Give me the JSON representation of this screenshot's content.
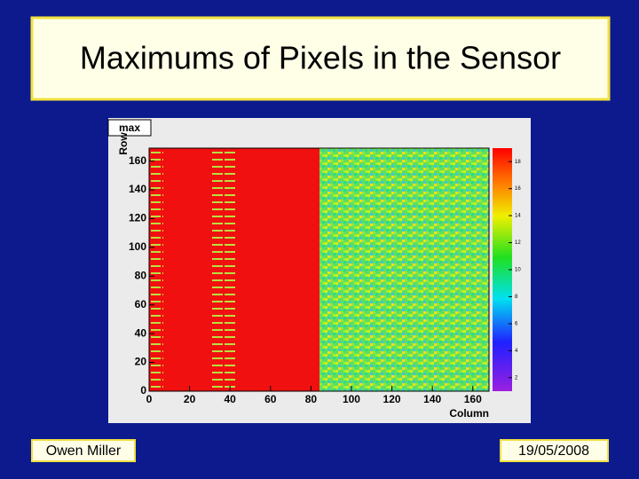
{
  "slide": {
    "title": "Maximums of Pixels in the Sensor",
    "author": "Owen Miller",
    "date": "19/05/2008"
  },
  "chart_data": {
    "type": "heatmap",
    "title": "max",
    "x_label": "Column",
    "y_label": "Row",
    "xlim": [
      0,
      168
    ],
    "xticks": [
      0,
      20,
      40,
      60,
      80,
      100,
      120,
      140,
      160
    ],
    "ylim": [
      0,
      169
    ],
    "yticks": [
      0,
      20,
      40,
      60,
      80,
      100,
      120,
      140,
      160
    ],
    "colorbar_lim": [
      1,
      19
    ],
    "colorbar_ticks": [
      2,
      4,
      6,
      8,
      10,
      12,
      14,
      16,
      18
    ]
  }
}
